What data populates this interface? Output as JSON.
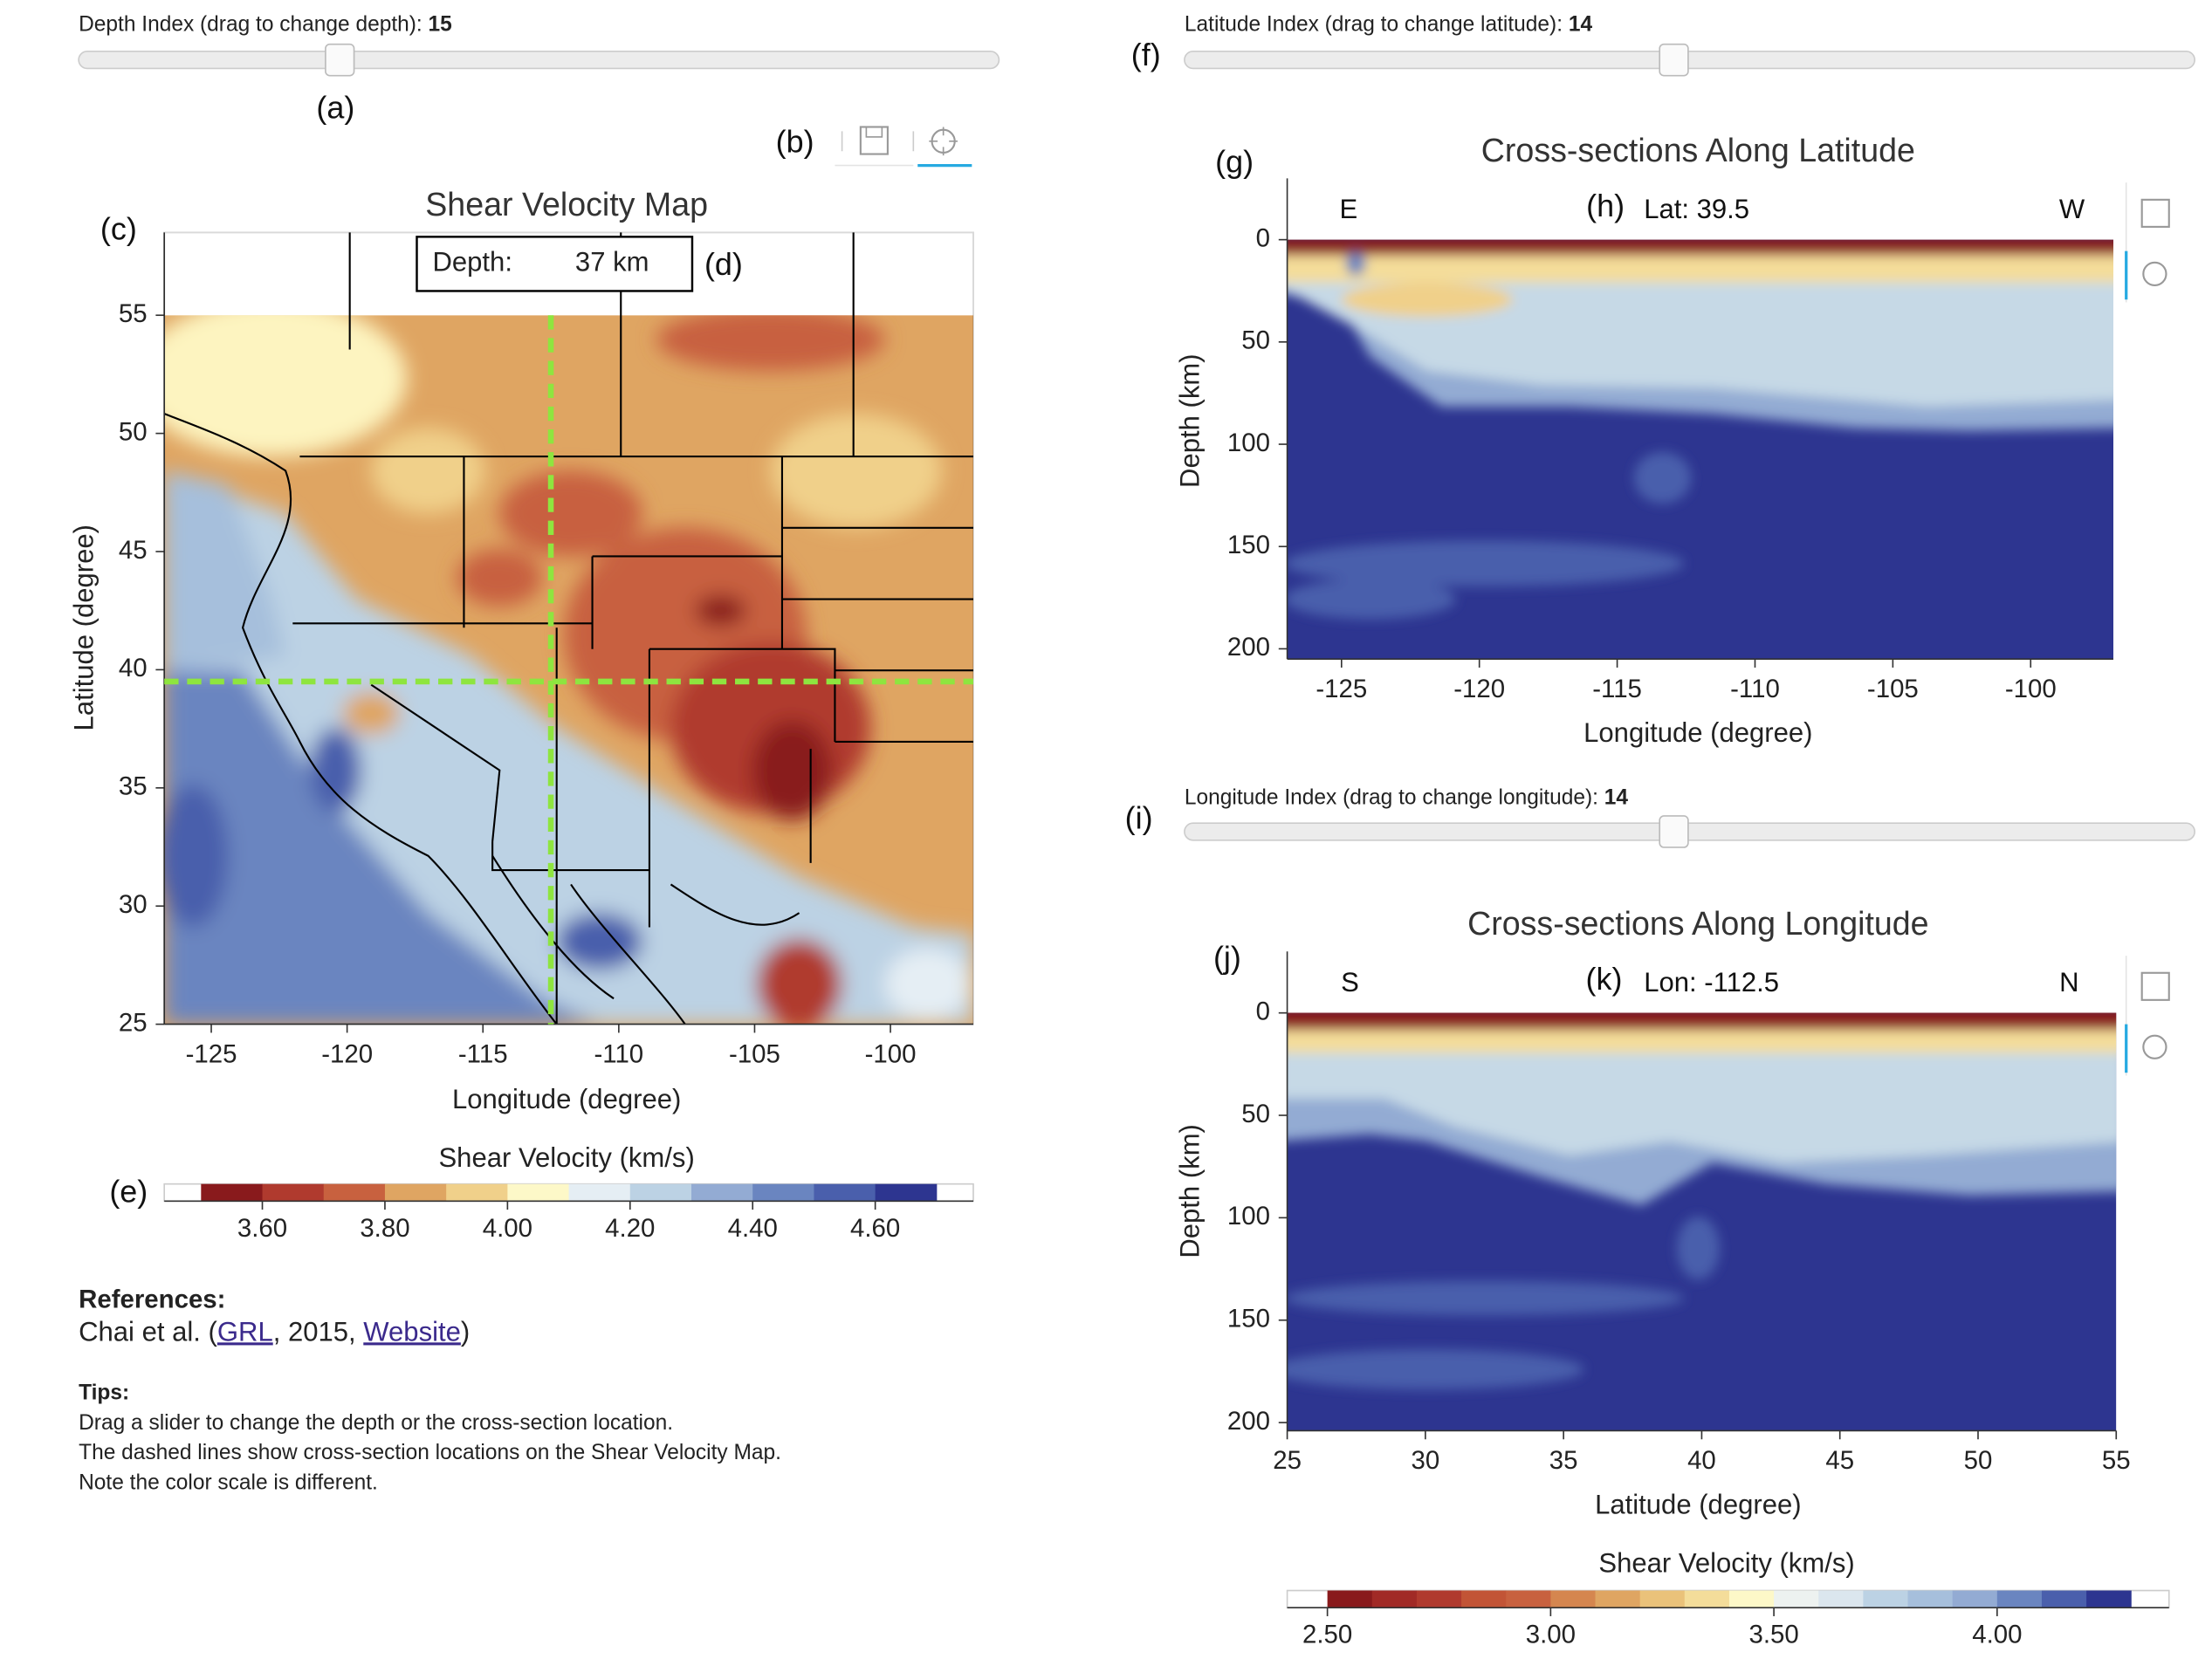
{
  "depth_slider": {
    "label": "Depth Index (drag to change depth):",
    "value": 15
  },
  "lat_slider": {
    "label": "Latitude Index (drag to change latitude):",
    "value": 14
  },
  "lon_slider": {
    "label": "Longitude Index (drag to change longitude):",
    "value": 14
  },
  "panel_labels": {
    "a": "(a)",
    "b": "(b)",
    "c": "(c)",
    "d": "(d)",
    "e": "(e)",
    "f": "(f)",
    "g": "(g)",
    "h": "(h)",
    "i": "(i)",
    "j": "(j)",
    "k": "(k)"
  },
  "map": {
    "title": "Shear Velocity Map",
    "depth_label": "Depth:",
    "depth_value": "37 km",
    "x_label": "Longitude (degree)",
    "y_label": "Latitude (degree)",
    "xlim": [
      -126.73,
      -96.95
    ],
    "ylim": [
      25,
      58.5
    ],
    "xticks": [
      -125,
      -120,
      -115,
      -110,
      -105,
      -100
    ],
    "yticks": [
      25,
      30,
      35,
      40,
      45,
      50,
      55
    ],
    "cross_lat": 39.5,
    "cross_lon": -112.5
  },
  "map_colorbar": {
    "title": "Shear Velocity (km/s)",
    "lim": [
      3.44,
      4.76
    ],
    "range": [
      3.5,
      4.7
    ],
    "ticks": [
      {
        "value": 3.6,
        "label": "3.60"
      },
      {
        "value": 3.8,
        "label": "3.80"
      },
      {
        "value": 4.0,
        "label": "4.00"
      },
      {
        "value": 4.2,
        "label": "4.20"
      },
      {
        "value": 4.4,
        "label": "4.40"
      },
      {
        "value": 4.6,
        "label": "4.60"
      }
    ],
    "colors": [
      "#891a1c",
      "#b03a2e",
      "#c8613f",
      "#dfa562",
      "#f0d08a",
      "#fdf8c8",
      "#e5eef4",
      "#bcd2e4",
      "#93abd3",
      "#6a85c0",
      "#4a5fac",
      "#2d3590"
    ]
  },
  "lat_section": {
    "title": "Cross-sections Along Latitude",
    "left": "E",
    "right": "W",
    "marker": "Lat: 39.5",
    "x_label": "Longitude (degree)",
    "y_label": "Depth (km)",
    "xlim": [
      -126.97,
      -97.0
    ],
    "ylim": [
      205,
      -30
    ],
    "xticks": [
      -125,
      -120,
      -115,
      -110,
      -105,
      -100
    ],
    "yticks": [
      0,
      50,
      100,
      150,
      200
    ]
  },
  "lon_section": {
    "title": "Cross-sections Along Longitude",
    "left": "S",
    "right": "N",
    "marker": "Lon: -112.5",
    "x_label": "Latitude (degree)",
    "y_label": "Depth (km)",
    "xlim": [
      25,
      55
    ],
    "ylim": [
      204,
      -30
    ],
    "xticks": [
      25,
      30,
      35,
      40,
      45,
      50,
      55
    ],
    "yticks": [
      0,
      50,
      100,
      150,
      200
    ]
  },
  "section_colorbar": {
    "title": "Shear Velocity (km/s)",
    "lim": [
      2.41,
      4.385
    ],
    "range": [
      2.5,
      4.3
    ],
    "ticks": [
      {
        "value": 2.5,
        "label": "2.50"
      },
      {
        "value": 3.0,
        "label": "3.00"
      },
      {
        "value": 3.5,
        "label": "3.50"
      },
      {
        "value": 4.0,
        "label": "4.00"
      }
    ],
    "colors": [
      "#891a1c",
      "#a12a26",
      "#b03a2e",
      "#c25436",
      "#c8613f",
      "#d5864f",
      "#dfa562",
      "#eac27a",
      "#f4dd9a",
      "#fdf8c8",
      "#edf2f0",
      "#dbe6ee",
      "#bcd2e4",
      "#a6bfdc",
      "#93abd3",
      "#6a85c0",
      "#4a5fac",
      "#2d3590"
    ]
  },
  "references": {
    "heading": "References:",
    "prefix": "Chai et al. (",
    "link1": "GRL",
    "middle": ", 2015, ",
    "link2": "Website",
    "suffix": ")"
  },
  "tips": {
    "heading": "Tips:",
    "lines": [
      "Drag a slider to change the depth or the cross-section location.",
      "The dashed lines show cross-section locations on the Shear Velocity Map.",
      "Note the color scale is different."
    ]
  }
}
